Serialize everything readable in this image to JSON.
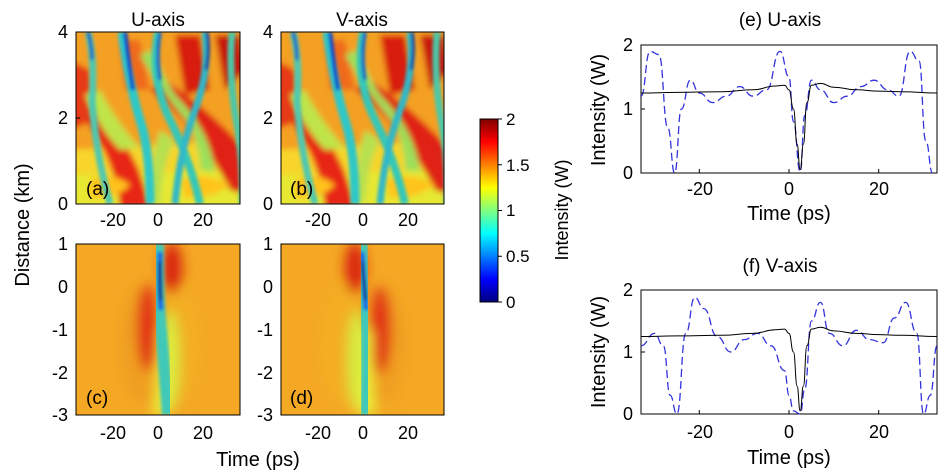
{
  "figure": {
    "xlabel_left": "Time (ps)",
    "ylabel_left": "Distance (km)",
    "colorbar": {
      "label": "Intensity (W)",
      "ticks": [
        "0",
        "0.5",
        "1",
        "1.5",
        "2"
      ],
      "range": [
        0,
        2
      ],
      "colormap": [
        "#00007f",
        "#0000ff",
        "#00ffff",
        "#ffff00",
        "#ff0000",
        "#7f0000"
      ]
    }
  },
  "chart_data": [
    {
      "id": "a",
      "type": "heatmap",
      "panel_label": "(a)",
      "title": "U-axis",
      "xticks": [
        "-20",
        "0",
        "20"
      ],
      "yticks": [
        "0",
        "2",
        "4"
      ],
      "xlim": [
        -35,
        35
      ],
      "ylim": [
        0,
        4
      ],
      "value_range": [
        0,
        2
      ]
    },
    {
      "id": "b",
      "type": "heatmap",
      "panel_label": "(b)",
      "title": "V-axis",
      "xticks": [
        "-20",
        "0",
        "20"
      ],
      "yticks": [
        "0",
        "2",
        "4"
      ],
      "xlim": [
        -35,
        35
      ],
      "ylim": [
        0,
        4
      ],
      "value_range": [
        0,
        2
      ]
    },
    {
      "id": "c",
      "type": "heatmap",
      "panel_label": "(c)",
      "title": "",
      "xticks": [
        "-20",
        "0",
        "20"
      ],
      "yticks": [
        "-3",
        "-2",
        "-1",
        "0",
        "1"
      ],
      "xlim": [
        -35,
        35
      ],
      "ylim": [
        -3,
        1
      ],
      "value_range": [
        0,
        2
      ]
    },
    {
      "id": "d",
      "type": "heatmap",
      "panel_label": "(d)",
      "title": "",
      "xticks": [
        "-20",
        "0",
        "20"
      ],
      "yticks": [
        "-3",
        "-2",
        "-1",
        "0",
        "1"
      ],
      "xlim": [
        -35,
        35
      ],
      "ylim": [
        -3,
        1
      ],
      "value_range": [
        0,
        2
      ]
    },
    {
      "id": "e",
      "type": "line",
      "title": "(e) U-axis",
      "xlabel": "Time (ps)",
      "ylabel": "Intensity (W)",
      "xlim": [
        -33,
        33
      ],
      "ylim": [
        0,
        2
      ],
      "xticks": [
        "-20",
        "0",
        "20"
      ],
      "yticks": [
        "0",
        "1",
        "2"
      ],
      "series": [
        {
          "style": "solid",
          "color": "#000000",
          "x": [
            -33,
            -25,
            -15,
            -8,
            -3,
            -1,
            0,
            1,
            1.8,
            2.5,
            3.2,
            4,
            5,
            7,
            10,
            15,
            20,
            25,
            33
          ],
          "y": [
            1.25,
            1.26,
            1.27,
            1.3,
            1.36,
            1.37,
            1.3,
            1.0,
            0.45,
            0.05,
            0.45,
            1.1,
            1.37,
            1.4,
            1.34,
            1.3,
            1.28,
            1.27,
            1.25
          ]
        },
        {
          "style": "dashed",
          "color": "#3333dd",
          "x": [
            -33,
            -31,
            -29,
            -27,
            -25.5,
            -24,
            -22,
            -20,
            -17,
            -14,
            -11,
            -8,
            -5,
            -2,
            0,
            1,
            2.5,
            3.5,
            5,
            7,
            10,
            13,
            16,
            19,
            22,
            24.5,
            27,
            29,
            30.5,
            32
          ],
          "y": [
            1.2,
            1.9,
            1.85,
            0.7,
            0.0,
            1.0,
            1.45,
            1.25,
            1.1,
            1.2,
            1.35,
            1.2,
            1.3,
            1.9,
            1.5,
            0.8,
            0.02,
            0.9,
            1.45,
            1.3,
            1.1,
            1.2,
            1.35,
            1.45,
            1.3,
            1.2,
            1.9,
            1.75,
            0.5,
            0.0
          ]
        }
      ]
    },
    {
      "id": "f",
      "type": "line",
      "title": "(f) V-axis",
      "xlabel": "Time (ps)",
      "ylabel": "Intensity (W)",
      "xlim": [
        -33,
        33
      ],
      "ylim": [
        0,
        2
      ],
      "xticks": [
        "-20",
        "0",
        "20"
      ],
      "yticks": [
        "0",
        "1",
        "2"
      ],
      "series": [
        {
          "style": "solid",
          "color": "#000000",
          "x": [
            -33,
            -25,
            -15,
            -8,
            -3,
            -1,
            0,
            1,
            1.8,
            2.5,
            3.2,
            4,
            5,
            7,
            10,
            15,
            20,
            25,
            33
          ],
          "y": [
            1.25,
            1.26,
            1.27,
            1.3,
            1.36,
            1.37,
            1.3,
            1.0,
            0.45,
            0.05,
            0.45,
            1.1,
            1.37,
            1.4,
            1.34,
            1.3,
            1.28,
            1.27,
            1.25
          ]
        },
        {
          "style": "dashed",
          "color": "#3333dd",
          "x": [
            -33,
            -30,
            -28,
            -26.5,
            -25,
            -23,
            -21,
            -19,
            -16,
            -13,
            -10,
            -7,
            -4,
            -1,
            0,
            1,
            2.5,
            3.5,
            5,
            7,
            9,
            12,
            15,
            18,
            21,
            23.5,
            26,
            28.5,
            30,
            31.5,
            33
          ],
          "y": [
            1.1,
            1.3,
            1.1,
            0.3,
            0.0,
            1.3,
            1.88,
            1.7,
            1.25,
            1.0,
            1.2,
            1.3,
            1.1,
            0.7,
            0.3,
            0.05,
            0.0,
            0.4,
            1.5,
            1.8,
            1.3,
            1.1,
            1.35,
            1.2,
            1.15,
            1.55,
            1.8,
            1.3,
            0.0,
            0.3,
            1.1
          ]
        }
      ]
    }
  ]
}
